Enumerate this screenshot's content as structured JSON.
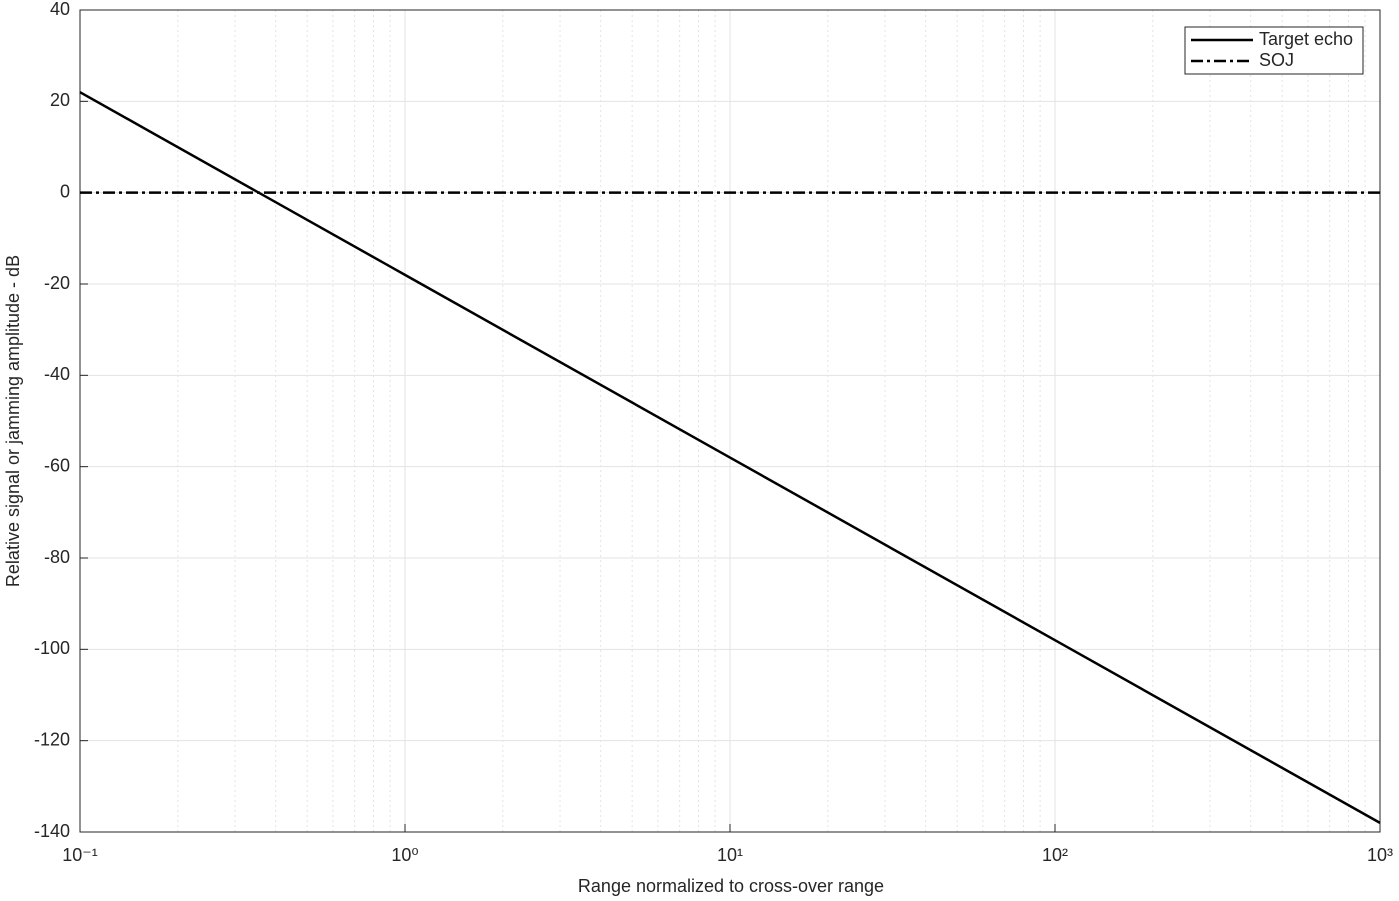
{
  "chart_data": {
    "type": "line",
    "xlabel": "Range normalized to cross-over range",
    "ylabel": "Relative signal or jamming amplitude - dB",
    "x": [
      0.1,
      1,
      10,
      100,
      1000
    ],
    "series": [
      {
        "name": "Target echo",
        "color": "#000000",
        "dash": "solid",
        "values": [
          22,
          -18,
          -58,
          -98,
          -138
        ]
      },
      {
        "name": "SOJ",
        "color": "#000000",
        "dash": "dashdot",
        "values": [
          0,
          0,
          0,
          0,
          0
        ]
      }
    ],
    "xscale": "log",
    "xlim": [
      0.1,
      1000
    ],
    "xticks": [
      {
        "value": 0.1,
        "label": "10⁻¹"
      },
      {
        "value": 1,
        "label": "10⁰"
      },
      {
        "value": 10,
        "label": "10¹"
      },
      {
        "value": 100,
        "label": "10²"
      },
      {
        "value": 1000,
        "label": "10³"
      }
    ],
    "ylim": [
      -140,
      40
    ],
    "yticks": [
      -140,
      -120,
      -100,
      -80,
      -60,
      -40,
      -20,
      0,
      20,
      40
    ],
    "grid": true,
    "legend": "upper right"
  }
}
